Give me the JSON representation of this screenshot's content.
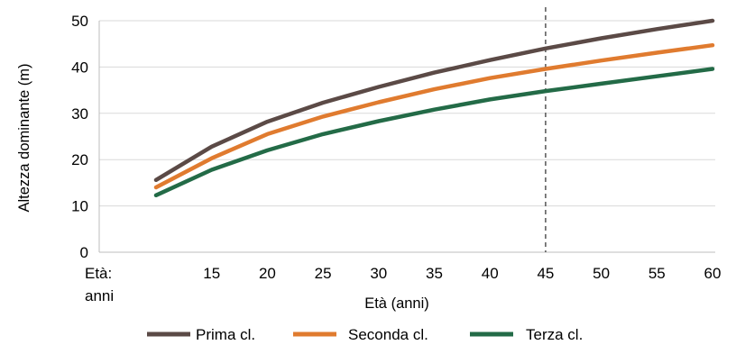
{
  "chart_data": {
    "type": "line",
    "xlabel": "Età (anni)",
    "ylabel": "Altezza dominante (m)",
    "corner_label_line1": "Età:",
    "corner_label_line2": "anni",
    "xlim": [
      10,
      60
    ],
    "ylim": [
      0,
      50
    ],
    "x_ticks": [
      15,
      20,
      25,
      30,
      35,
      40,
      45,
      50,
      55,
      60
    ],
    "y_ticks": [
      0,
      10,
      20,
      30,
      40,
      50
    ],
    "grid": "horizontal",
    "reference_line": {
      "x": 45,
      "style": "dashed",
      "color": "#555555"
    },
    "legend_position": "bottom",
    "x": [
      10,
      15,
      20,
      25,
      30,
      35,
      40,
      45,
      50,
      55,
      60
    ],
    "series": [
      {
        "name": "Prima cl.",
        "color": "#5b4a46",
        "values": [
          15.6,
          22.8,
          28.2,
          32.3,
          35.7,
          38.8,
          41.5,
          44.0,
          46.2,
          48.2,
          50.0
        ]
      },
      {
        "name": "Seconda cl.",
        "color": "#e07b2f",
        "values": [
          14.0,
          20.3,
          25.5,
          29.3,
          32.4,
          35.2,
          37.6,
          39.6,
          41.4,
          43.1,
          44.7
        ]
      },
      {
        "name": "Terza cl.",
        "color": "#236b47",
        "values": [
          12.3,
          17.8,
          22.0,
          25.5,
          28.3,
          30.8,
          33.0,
          34.8,
          36.4,
          38.0,
          39.6
        ]
      }
    ]
  }
}
